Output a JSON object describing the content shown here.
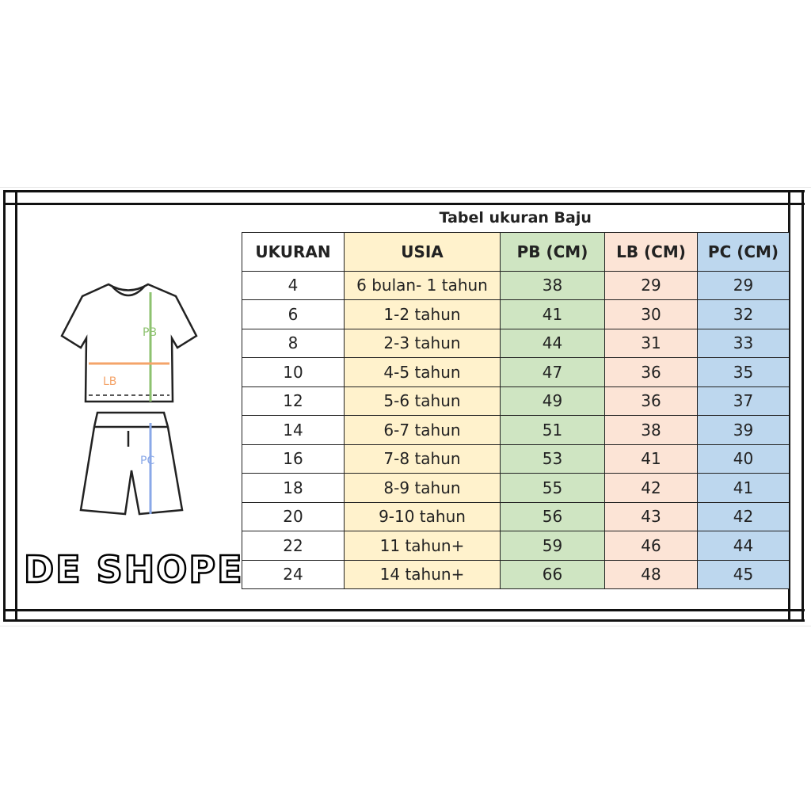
{
  "colors": {
    "usia": "#FFF2CC",
    "pb": "#CFE5C2",
    "lb": "#FCE4D6",
    "pc": "#BDD7EE",
    "pb_arrow": "#8DC26F",
    "lb_arrow": "#F4A46A",
    "pc_arrow": "#8AA8E8"
  },
  "illustration": {
    "pb_label": "PB",
    "lb_label": "LB",
    "pc_label": "PC"
  },
  "logo": "DE SHOPE",
  "table": {
    "title": "Tabel ukuran Baju",
    "headers": [
      "UKURAN",
      "USIA",
      "PB (CM)",
      "LB (CM)",
      "PC (CM)"
    ],
    "rows": [
      [
        "4",
        "6 bulan- 1 tahun",
        "38",
        "29",
        "29"
      ],
      [
        "6",
        "1-2 tahun",
        "41",
        "30",
        "32"
      ],
      [
        "8",
        "2-3 tahun",
        "44",
        "31",
        "33"
      ],
      [
        "10",
        "4-5 tahun",
        "47",
        "36",
        "35"
      ],
      [
        "12",
        "5-6 tahun",
        "49",
        "36",
        "37"
      ],
      [
        "14",
        "6-7 tahun",
        "51",
        "38",
        "39"
      ],
      [
        "16",
        "7-8 tahun",
        "53",
        "41",
        "40"
      ],
      [
        "18",
        "8-9 tahun",
        "55",
        "42",
        "41"
      ],
      [
        "20",
        "9-10 tahun",
        "56",
        "43",
        "42"
      ],
      [
        "22",
        "11 tahun+",
        "59",
        "46",
        "44"
      ],
      [
        "24",
        "14 tahun+",
        "66",
        "48",
        "45"
      ]
    ]
  }
}
